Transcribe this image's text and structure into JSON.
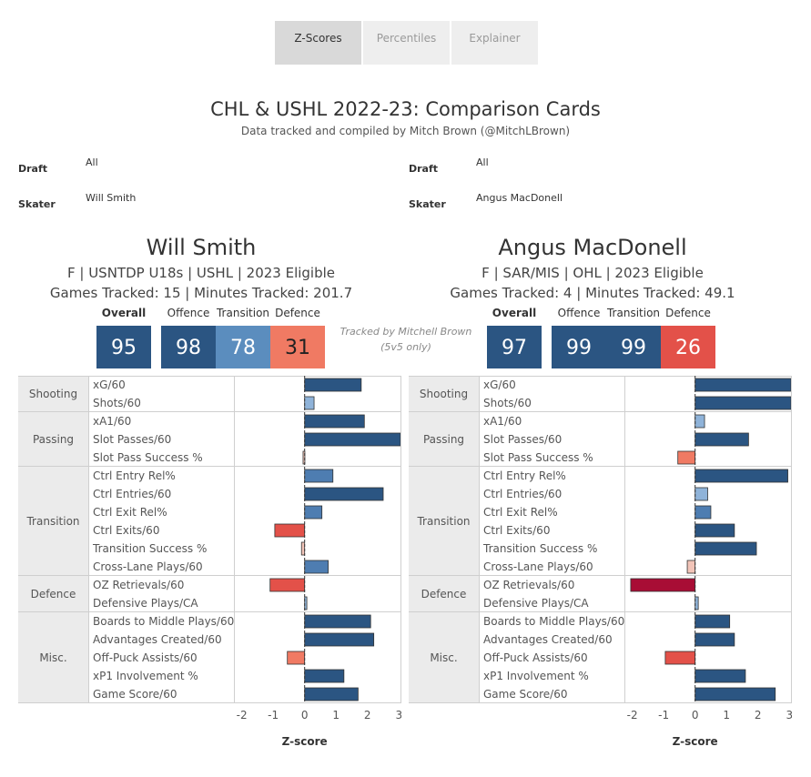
{
  "tabs": [
    {
      "label": "Z-Scores",
      "active": true
    },
    {
      "label": "Percentiles",
      "active": false
    },
    {
      "label": "Explainer",
      "active": false
    }
  ],
  "header": {
    "title": "CHL & USHL 2022-23: Comparison Cards",
    "subtitle": "Data tracked and compiled by Mitch Brown (@MitchLBrown)"
  },
  "filters": {
    "left": {
      "draft_label": "Draft",
      "draft_value": "All",
      "skater_label": "Skater",
      "skater_value": "Will Smith"
    },
    "right": {
      "draft_label": "Draft",
      "draft_value": "All",
      "skater_label": "Skater",
      "skater_value": "Angus MacDonell"
    }
  },
  "score_headers": {
    "overall": "Overall",
    "offence": "Offence",
    "transition": "Transition",
    "defence": "Defence"
  },
  "tracked_note": {
    "line1": "Tracked by Mitchell Brown",
    "line2": "(5v5 only)"
  },
  "players": [
    {
      "name": "Will Smith",
      "info": "F | USNTDP U18s | USHL | 2023 Eligible",
      "games": "Games Tracked: 15 | Minutes Tracked: 201.7",
      "overall": "95",
      "offence": "98",
      "transition": "78",
      "defence": "31",
      "colors": {
        "overall": "#2b5582",
        "offence": "#2b5582",
        "transition": "#5b8dbe",
        "defence": "#f07a63"
      }
    },
    {
      "name": "Angus MacDonell",
      "info": "F | SAR/MIS | OHL | 2023 Eligible",
      "games": "Games Tracked: 4 | Minutes Tracked: 49.1",
      "overall": "97",
      "offence": "99",
      "transition": "99",
      "defence": "26",
      "colors": {
        "overall": "#2b5582",
        "offence": "#2b5582",
        "transition": "#2b5582",
        "defence": "#e35149"
      }
    }
  ],
  "chart_data": [
    {
      "type": "bar",
      "title": "Will Smith",
      "xlabel": "Z-score",
      "xlim": [
        -2.25,
        3.05
      ],
      "xticks": [
        "-2",
        "-1",
        "0",
        "1",
        "2",
        "3"
      ],
      "groups": [
        {
          "name": "Shooting",
          "metrics": [
            {
              "label": "xG/60",
              "value": 1.8
            },
            {
              "label": "Shots/60",
              "value": 0.3
            }
          ]
        },
        {
          "name": "Passing",
          "metrics": [
            {
              "label": "xA1/60",
              "value": 1.9
            },
            {
              "label": "Slot Passes/60",
              "value": 3.1
            },
            {
              "label": "Slot Pass Success %",
              "value": -0.05
            }
          ]
        },
        {
          "name": "Transition",
          "metrics": [
            {
              "label": "Ctrl Entry Rel%",
              "value": 0.9
            },
            {
              "label": "Ctrl Entries/60",
              "value": 2.5
            },
            {
              "label": "Ctrl Exit Rel%",
              "value": 0.55
            },
            {
              "label": "Ctrl Exits/60",
              "value": -0.95
            },
            {
              "label": "Transition Success %",
              "value": -0.1
            },
            {
              "label": "Cross-Lane Plays/60",
              "value": 0.75
            }
          ]
        },
        {
          "name": "Defence",
          "metrics": [
            {
              "label": "OZ Retrievals/60",
              "value": -1.1
            },
            {
              "label": "Defensive Plays/CA",
              "value": 0.07
            }
          ]
        },
        {
          "name": "Misc.",
          "metrics": [
            {
              "label": "Boards to Middle Plays/60",
              "value": 2.1
            },
            {
              "label": "Advantages Created/60",
              "value": 2.2
            },
            {
              "label": "Off-Puck Assists/60",
              "value": -0.55
            },
            {
              "label": "xP1 Involvement %",
              "value": 1.25
            },
            {
              "label": "Game Score/60",
              "value": 1.7
            }
          ]
        }
      ]
    },
    {
      "type": "bar",
      "title": "Angus MacDonell",
      "xlabel": "Z-score",
      "xlim": [
        -2.25,
        3.05
      ],
      "xticks": [
        "-2",
        "-1",
        "0",
        "1",
        "2",
        "3"
      ],
      "groups": [
        {
          "name": "Shooting",
          "metrics": [
            {
              "label": "xG/60",
              "value": 3.1
            },
            {
              "label": "Shots/60",
              "value": 3.1
            }
          ]
        },
        {
          "name": "Passing",
          "metrics": [
            {
              "label": "xA1/60",
              "value": 0.3
            },
            {
              "label": "Slot Passes/60",
              "value": 1.7
            },
            {
              "label": "Slot Pass Success %",
              "value": -0.55
            }
          ]
        },
        {
          "name": "Transition",
          "metrics": [
            {
              "label": "Ctrl Entry Rel%",
              "value": 2.95
            },
            {
              "label": "Ctrl Entries/60",
              "value": 0.4
            },
            {
              "label": "Ctrl Exit Rel%",
              "value": 0.5
            },
            {
              "label": "Ctrl Exits/60",
              "value": 1.25
            },
            {
              "label": "Transition Success %",
              "value": 1.95
            },
            {
              "label": "Cross-Lane Plays/60",
              "value": -0.25
            }
          ]
        },
        {
          "name": "Defence",
          "metrics": [
            {
              "label": "OZ Retrievals/60",
              "value": -2.05
            },
            {
              "label": "Defensive Plays/CA",
              "value": 0.1
            }
          ]
        },
        {
          "name": "Misc.",
          "metrics": [
            {
              "label": "Boards to Middle Plays/60",
              "value": 1.1
            },
            {
              "label": "Advantages Created/60",
              "value": 1.25
            },
            {
              "label": "Off-Puck Assists/60",
              "value": -0.95
            },
            {
              "label": "xP1 Involvement %",
              "value": 1.6
            },
            {
              "label": "Game Score/60",
              "value": 2.55
            }
          ]
        }
      ]
    }
  ]
}
